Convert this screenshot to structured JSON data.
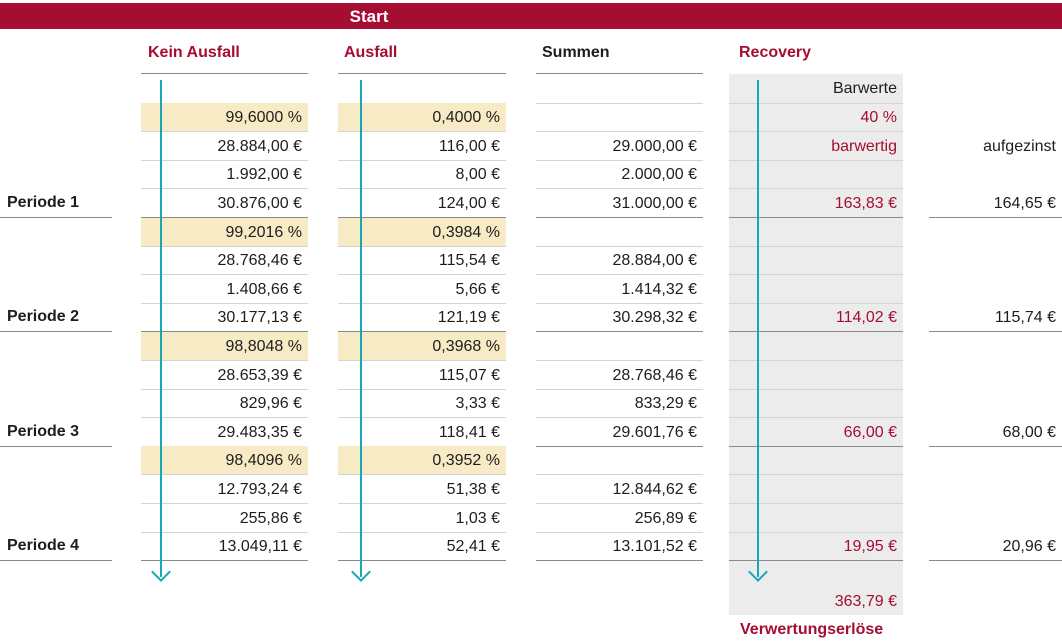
{
  "start": "Start",
  "headers": {
    "kein_ausfall": "Kein Ausfall",
    "ausfall": "Ausfall",
    "summen": "Summen",
    "recovery": "Recovery"
  },
  "recovery_top": {
    "barwerte": "Barwerte",
    "rate": "40 %",
    "barwertig": "barwertig"
  },
  "aufgezinst": "aufgezinst",
  "rows": [
    {
      "period": "",
      "kein": "99,6000 %",
      "aus": "0,4000 %",
      "sum": "",
      "rec": "",
      "auf": "",
      "pct": true
    },
    {
      "period": "",
      "kein": "28.884,00 €",
      "aus": "116,00 €",
      "sum": "29.000,00 €",
      "rec": "",
      "auf": ""
    },
    {
      "period": "",
      "kein": "1.992,00 €",
      "aus": "8,00 €",
      "sum": "2.000,00 €",
      "rec": "",
      "auf": ""
    },
    {
      "period": "Periode 1",
      "kein": "30.876,00 €",
      "aus": "124,00 €",
      "sum": "31.000,00 €",
      "rec": "163,83 €",
      "auf": "164,65 €"
    },
    {
      "period": "",
      "kein": "99,2016 %",
      "aus": "0,3984 %",
      "sum": "",
      "rec": "",
      "auf": "",
      "pct": true
    },
    {
      "period": "",
      "kein": "28.768,46 €",
      "aus": "115,54 €",
      "sum": "28.884,00 €",
      "rec": "",
      "auf": ""
    },
    {
      "period": "",
      "kein": "1.408,66 €",
      "aus": "5,66 €",
      "sum": "1.414,32 €",
      "rec": "",
      "auf": ""
    },
    {
      "period": "Periode 2",
      "kein": "30.177,13 €",
      "aus": "121,19 €",
      "sum": "30.298,32 €",
      "rec": "114,02 €",
      "auf": "115,74 €"
    },
    {
      "period": "",
      "kein": "98,8048 %",
      "aus": "0,3968 %",
      "sum": "",
      "rec": "",
      "auf": "",
      "pct": true
    },
    {
      "period": "",
      "kein": "28.653,39 €",
      "aus": "115,07 €",
      "sum": "28.768,46 €",
      "rec": "",
      "auf": ""
    },
    {
      "period": "",
      "kein": "829,96 €",
      "aus": "3,33 €",
      "sum": "833,29 €",
      "rec": "",
      "auf": ""
    },
    {
      "period": "Periode 3",
      "kein": "29.483,35 €",
      "aus": "118,41 €",
      "sum": "29.601,76 €",
      "rec": "66,00 €",
      "auf": "68,00 €"
    },
    {
      "period": "",
      "kein": "98,4096 %",
      "aus": "0,3952 %",
      "sum": "",
      "rec": "",
      "auf": "",
      "pct": true
    },
    {
      "period": "",
      "kein": "12.793,24 €",
      "aus": "51,38 €",
      "sum": "12.844,62 €",
      "rec": "",
      "auf": ""
    },
    {
      "period": "",
      "kein": "255,86 €",
      "aus": "1,03 €",
      "sum": "256,89 €",
      "rec": "",
      "auf": ""
    },
    {
      "period": "Periode 4",
      "kein": "13.049,11 €",
      "aus": "52,41 €",
      "sum": "13.101,52 €",
      "rec": "19,95 €",
      "auf": "20,96 €"
    }
  ],
  "total": "363,79 €",
  "footer": "Verwertungserlöse",
  "colors": {
    "brand": "#a50d32",
    "highlight": "#f7ebc6",
    "arrow": "#17a8b5",
    "recovery_bg": "#ececec"
  }
}
